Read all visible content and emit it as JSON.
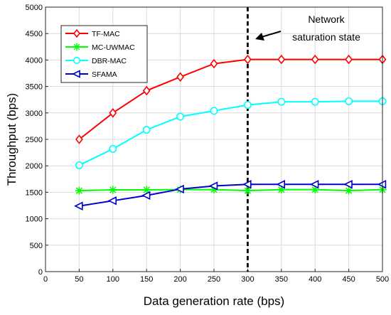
{
  "chart_data": {
    "type": "line",
    "title": "",
    "xlabel": "Data generation rate (bps)",
    "ylabel": "Throughput (bps)",
    "xlim": [
      0,
      500
    ],
    "ylim": [
      0,
      5000
    ],
    "xticks": [
      0,
      50,
      100,
      150,
      200,
      250,
      300,
      350,
      400,
      450,
      500
    ],
    "yticks": [
      0,
      500,
      1000,
      1500,
      2000,
      2500,
      3000,
      3500,
      4000,
      4500,
      5000
    ],
    "grid": true,
    "legend_position": "top-left",
    "x": [
      50,
      100,
      150,
      200,
      250,
      300,
      350,
      400,
      450,
      500
    ],
    "series": [
      {
        "name": "TF-MAC",
        "color": "#ff0000",
        "marker": "diamond",
        "values": [
          2500,
          3000,
          3420,
          3680,
          3930,
          4010,
          4010,
          4010,
          4010,
          4010
        ]
      },
      {
        "name": "MC-UWMAC",
        "color": "#00ff00",
        "marker": "asterisk",
        "values": [
          1530,
          1545,
          1545,
          1550,
          1550,
          1530,
          1550,
          1550,
          1530,
          1550
        ]
      },
      {
        "name": "DBR-MAC",
        "color": "#00ffff",
        "marker": "circle",
        "values": [
          2010,
          2320,
          2680,
          2930,
          3040,
          3150,
          3210,
          3210,
          3220,
          3220
        ]
      },
      {
        "name": "SFAMA",
        "color": "#0000cc",
        "marker": "triangle-left",
        "values": [
          1240,
          1340,
          1440,
          1560,
          1620,
          1650,
          1650,
          1650,
          1650,
          1650
        ]
      }
    ],
    "annotations": [
      {
        "text_lines": [
          "Network",
          "saturation state"
        ],
        "vertical_line_x": 300
      }
    ]
  }
}
